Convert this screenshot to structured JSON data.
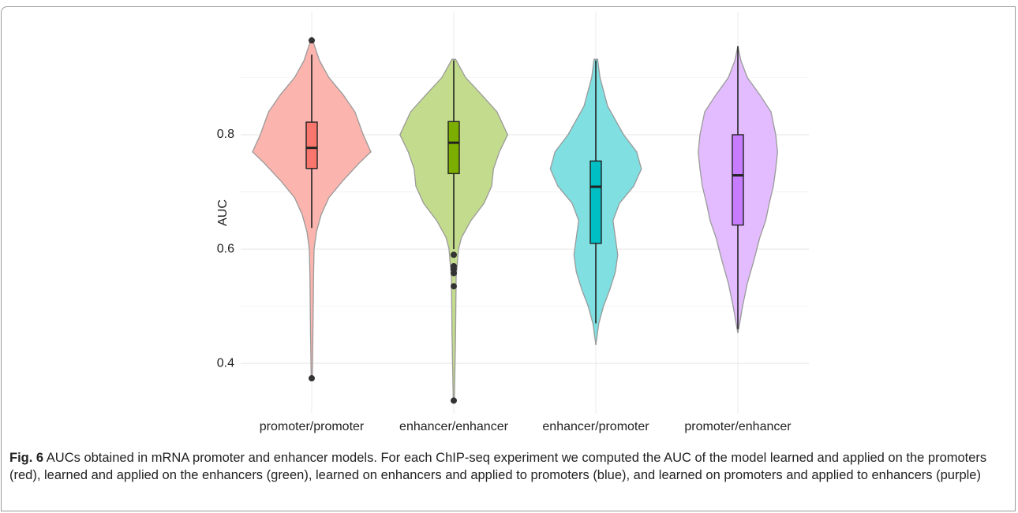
{
  "chart_data": {
    "type": "violin",
    "ylabel": "AUC",
    "ylim": [
      0.312,
      1.015
    ],
    "yticks": [
      0.4,
      0.6,
      0.8
    ],
    "minor_yticks": [
      0.5,
      0.7,
      0.9
    ],
    "grid": true,
    "series": [
      {
        "name": "promoter/promoter",
        "color": "#f8766d",
        "fill": "#fbb4ae",
        "box": {
          "whisker_low": 0.637,
          "q1": 0.741,
          "median": 0.777,
          "q3": 0.822,
          "whisker_high": 0.94
        },
        "outliers": [
          0.965,
          0.374
        ],
        "density": {
          "y": [
            0.97,
            0.93,
            0.9,
            0.87,
            0.84,
            0.8,
            0.77,
            0.75,
            0.72,
            0.69,
            0.66,
            0.63,
            0.6,
            0.55,
            0.45,
            0.38,
            0.37
          ],
          "width": [
            0,
            0.13,
            0.29,
            0.53,
            0.73,
            0.87,
            1,
            0.8,
            0.53,
            0.29,
            0.16,
            0.08,
            0.04,
            0.03,
            0.02,
            0.01,
            0
          ]
        }
      },
      {
        "name": "enhancer/enhancer",
        "color": "#7cae00",
        "fill": "#c3db8c",
        "box": {
          "whisker_low": 0.6,
          "q1": 0.732,
          "median": 0.786,
          "q3": 0.823,
          "whisker_high": 0.93
        },
        "outliers": [
          0.59,
          0.57,
          0.565,
          0.558,
          0.535,
          0.335
        ],
        "density": {
          "y": [
            0.932,
            0.9,
            0.87,
            0.84,
            0.8,
            0.77,
            0.74,
            0.71,
            0.68,
            0.65,
            0.62,
            0.6,
            0.55,
            0.45,
            0.34,
            0.335
          ],
          "width": [
            0.03,
            0.2,
            0.47,
            0.73,
            0.91,
            0.77,
            0.67,
            0.64,
            0.51,
            0.29,
            0.13,
            0.08,
            0.04,
            0.03,
            0.01,
            0
          ]
        }
      },
      {
        "name": "enhancer/promoter",
        "color": "#00bfc4",
        "fill": "#7fdfe1",
        "box": {
          "whisker_low": 0.47,
          "q1": 0.61,
          "median": 0.709,
          "q3": 0.754,
          "whisker_high": 0.93
        },
        "outliers": [],
        "density": {
          "y": [
            0.932,
            0.9,
            0.85,
            0.8,
            0.77,
            0.74,
            0.71,
            0.68,
            0.65,
            0.62,
            0.59,
            0.56,
            0.53,
            0.5,
            0.47,
            0.44,
            0.432
          ],
          "width": [
            0.03,
            0.07,
            0.2,
            0.47,
            0.69,
            0.77,
            0.64,
            0.4,
            0.29,
            0.33,
            0.37,
            0.33,
            0.24,
            0.13,
            0.05,
            0.01,
            0
          ]
        }
      },
      {
        "name": "promoter/enhancer",
        "color": "#c77cff",
        "fill": "#e2bcfe",
        "box": {
          "whisker_low": 0.46,
          "q1": 0.642,
          "median": 0.729,
          "q3": 0.8,
          "whisker_high": 0.955
        },
        "outliers": [],
        "density": {
          "y": [
            0.955,
            0.93,
            0.9,
            0.87,
            0.84,
            0.8,
            0.77,
            0.74,
            0.71,
            0.68,
            0.65,
            0.62,
            0.58,
            0.54,
            0.5,
            0.47,
            0.453
          ],
          "width": [
            0,
            0.05,
            0.16,
            0.37,
            0.56,
            0.64,
            0.67,
            0.64,
            0.6,
            0.53,
            0.47,
            0.37,
            0.27,
            0.16,
            0.08,
            0.03,
            0
          ]
        }
      }
    ]
  },
  "caption": {
    "label": "Fig. 6",
    "text": " AUCs obtained in mRNA promoter and enhancer models. For each ChIP-seq experiment we computed the AUC of the model learned and applied on the promoters (red), learned and applied on the enhancers (green), learned on enhancers and applied to promoters (blue), and learned on promoters and applied to enhancers (purple)"
  }
}
